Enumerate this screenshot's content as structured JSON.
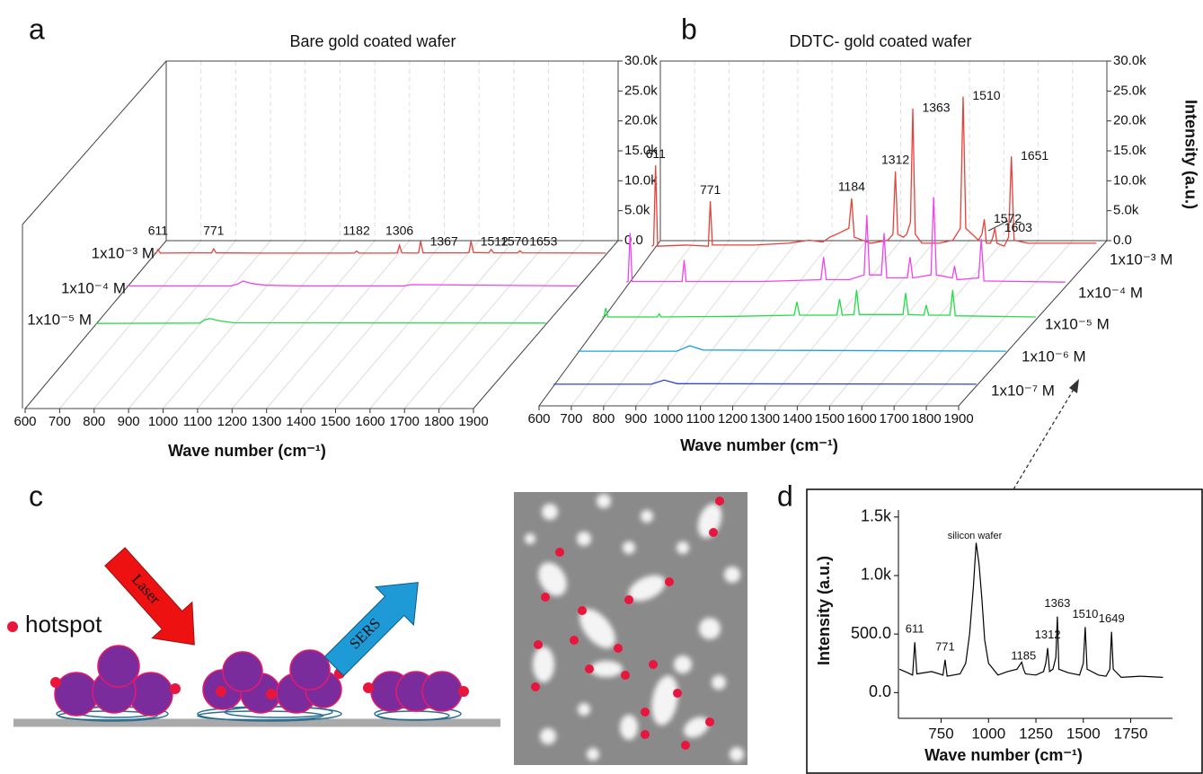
{
  "panels": {
    "a": {
      "label": "a",
      "type": "waterfall",
      "title": "Bare gold coated wafer",
      "xlabel": "Wave number (cm⁻¹)",
      "xlim": [
        600,
        1900
      ],
      "xticks": [
        600,
        700,
        800,
        900,
        1000,
        1100,
        1200,
        1300,
        1400,
        1500,
        1600,
        1700,
        1800,
        1900
      ],
      "zlim": [
        0,
        30000
      ],
      "zticks": [
        {
          "value": 0,
          "label": "0.0"
        },
        {
          "value": 5000,
          "label": "5.0k"
        },
        {
          "value": 10000,
          "label": "10.0k"
        },
        {
          "value": 15000,
          "label": "15.0k"
        },
        {
          "value": 20000,
          "label": "20.0k"
        },
        {
          "value": 25000,
          "label": "25.0k"
        },
        {
          "value": 30000,
          "label": "30.0k"
        }
      ],
      "series": [
        {
          "name": "1x10⁻³ M",
          "color": "#e8403a",
          "x": [
            600,
            605,
            611,
            618,
            700,
            765,
            771,
            778,
            900,
            1176,
            1182,
            1190,
            1290,
            1300,
            1306,
            1313,
            1355,
            1361,
            1367,
            1374,
            1500,
            1506,
            1512,
            1519,
            1563,
            1570,
            1577,
            1646,
            1653,
            1660,
            1900
          ],
          "values": [
            300,
            300,
            900,
            300,
            350,
            350,
            1000,
            350,
            300,
            300,
            650,
            300,
            300,
            350,
            1600,
            350,
            300,
            350,
            2300,
            350,
            350,
            400,
            2300,
            400,
            350,
            900,
            350,
            350,
            700,
            350,
            300
          ]
        },
        {
          "name": "1x10⁻⁴ M",
          "color": "#ee44ee",
          "x": [
            600,
            900,
            920,
            935,
            960,
            1000,
            1100,
            1400,
            1420,
            1900
          ],
          "values": [
            300,
            300,
            600,
            1100,
            700,
            400,
            300,
            300,
            500,
            300
          ]
        },
        {
          "name": "1x10⁻⁵ M",
          "color": "#22dd44",
          "x": [
            600,
            900,
            915,
            930,
            960,
            1000,
            1900
          ],
          "values": [
            200,
            250,
            800,
            1000,
            600,
            300,
            250
          ]
        }
      ],
      "peak_labels": [
        611,
        771,
        1182,
        1306,
        1367,
        1512,
        1570,
        1653
      ]
    },
    "b": {
      "label": "b",
      "type": "waterfall",
      "title": "DDTC- gold coated wafer",
      "xlabel": "Wave number (cm⁻¹)",
      "zlabel": "Intensity (a.u.)",
      "xlim": [
        600,
        1900
      ],
      "xticks": [
        600,
        700,
        800,
        900,
        1000,
        1100,
        1200,
        1300,
        1400,
        1500,
        1600,
        1700,
        1800,
        1900
      ],
      "zlim": [
        0,
        30000
      ],
      "zticks": [
        {
          "value": 0,
          "label": "0.0"
        },
        {
          "value": 5000,
          "label": "5.0k"
        },
        {
          "value": 10000,
          "label": "10.0k"
        },
        {
          "value": 15000,
          "label": "15.0k"
        },
        {
          "value": 20000,
          "label": "20.0k"
        },
        {
          "value": 25000,
          "label": "25.0k"
        },
        {
          "value": 30000,
          "label": "30.0k"
        }
      ],
      "series": [
        {
          "name": "1x10⁻³ M",
          "color": "#e8403a",
          "x": [
            600,
            605,
            611,
            617,
            700,
            765,
            771,
            777,
            900,
            1000,
            1060,
            1100,
            1120,
            1140,
            1176,
            1184,
            1192,
            1240,
            1290,
            1305,
            1312,
            1319,
            1335,
            1345,
            1356,
            1363,
            1370,
            1390,
            1440,
            1480,
            1502,
            1510,
            1518,
            1555,
            1565,
            1572,
            1578,
            1590,
            1597,
            1603,
            1609,
            1630,
            1643,
            1651,
            1659,
            1700,
            1900
          ],
          "values": [
            1000,
            1200,
            14500,
            1000,
            1200,
            1000,
            8500,
            1200,
            1200,
            1500,
            2000,
            1700,
            2500,
            3000,
            4000,
            9000,
            2500,
            1500,
            2000,
            3000,
            13500,
            3000,
            2500,
            3000,
            5000,
            24000,
            3000,
            1500,
            1500,
            2000,
            4000,
            26000,
            4000,
            2000,
            3000,
            5500,
            1500,
            1500,
            2500,
            4000,
            1500,
            1000,
            2500,
            16000,
            2000,
            1500,
            1500
          ]
        },
        {
          "name": "1x10⁻⁴ M",
          "color": "#ee44ee",
          "x": [
            600,
            605,
            611,
            617,
            700,
            765,
            771,
            777,
            1000,
            1176,
            1184,
            1192,
            1260,
            1304,
            1312,
            1320,
            1355,
            1363,
            1371,
            1432,
            1440,
            1448,
            1502,
            1510,
            1518,
            1565,
            1572,
            1579,
            1643,
            1651,
            1659,
            1900
          ],
          "values": [
            800,
            900,
            9000,
            900,
            900,
            900,
            4500,
            900,
            900,
            1200,
            5000,
            1200,
            1200,
            2000,
            12000,
            2000,
            2000,
            9000,
            1500,
            1500,
            5000,
            1500,
            2000,
            15000,
            2000,
            1500,
            3500,
            1200,
            1500,
            8000,
            1000,
            800
          ]
        },
        {
          "name": "1x10⁻⁵ M",
          "color": "#22dd44",
          "x": [
            600,
            605,
            611,
            617,
            765,
            771,
            777,
            1000,
            1176,
            1184,
            1192,
            1304,
            1312,
            1320,
            1355,
            1363,
            1371,
            1502,
            1510,
            1518,
            1565,
            1572,
            1579,
            1643,
            1651,
            1659,
            1900
          ],
          "values": [
            500,
            500,
            2000,
            500,
            500,
            1000,
            500,
            600,
            800,
            3000,
            800,
            800,
            3500,
            800,
            900,
            5000,
            900,
            900,
            4500,
            900,
            800,
            2500,
            800,
            800,
            5000,
            700,
            500
          ]
        },
        {
          "name": "1x10⁻⁶ M",
          "color": "#1ea0e0",
          "x": [
            600,
            900,
            940,
            980,
            1900
          ],
          "values": [
            300,
            300,
            1200,
            500,
            300
          ]
        },
        {
          "name": "1x10⁻⁷ M",
          "color": "#3344cc",
          "x": [
            600,
            900,
            940,
            980,
            1900
          ],
          "values": [
            300,
            300,
            1000,
            400,
            300
          ]
        }
      ],
      "peak_labels": [
        611,
        771,
        1184,
        1312,
        1363,
        1510,
        1572,
        1603,
        1651
      ]
    },
    "c": {
      "label": "c",
      "legend": "hotspot",
      "laser": "Laser",
      "sers": "SERS"
    },
    "d": {
      "label": "d",
      "type": "line",
      "xlabel": "Wave number (cm⁻¹)",
      "ylabel": "Intensity (a.u.)",
      "color": "#000000",
      "xlim": [
        525,
        1970
      ],
      "xticks": [
        750,
        1000,
        1250,
        1500,
        1750
      ],
      "ylim": [
        -220,
        1560
      ],
      "yticks": [
        {
          "value": 0,
          "label": "0.0"
        },
        {
          "value": 500,
          "label": "500.0"
        },
        {
          "value": 1000,
          "label": "1.0k"
        },
        {
          "value": 1500,
          "label": "1.5k"
        }
      ],
      "annotation": "silicon wafer",
      "x": [
        530,
        560,
        600,
        611,
        622,
        700,
        760,
        771,
        782,
        850,
        880,
        900,
        920,
        935,
        950,
        965,
        980,
        1000,
        1050,
        1100,
        1150,
        1175,
        1185,
        1195,
        1250,
        1290,
        1302,
        1312,
        1322,
        1340,
        1355,
        1363,
        1371,
        1420,
        1480,
        1500,
        1510,
        1520,
        1580,
        1620,
        1640,
        1649,
        1658,
        1700,
        1800,
        1920
      ],
      "values": [
        200,
        180,
        150,
        430,
        160,
        180,
        150,
        280,
        140,
        160,
        250,
        500,
        900,
        1280,
        1100,
        800,
        450,
        250,
        150,
        180,
        200,
        260,
        200,
        160,
        150,
        180,
        250,
        380,
        180,
        200,
        300,
        650,
        200,
        170,
        150,
        250,
        560,
        200,
        150,
        140,
        200,
        520,
        200,
        130,
        140,
        130
      ],
      "peak_labels": [
        611,
        771,
        1185,
        1312,
        1363,
        1510,
        1649
      ]
    }
  }
}
